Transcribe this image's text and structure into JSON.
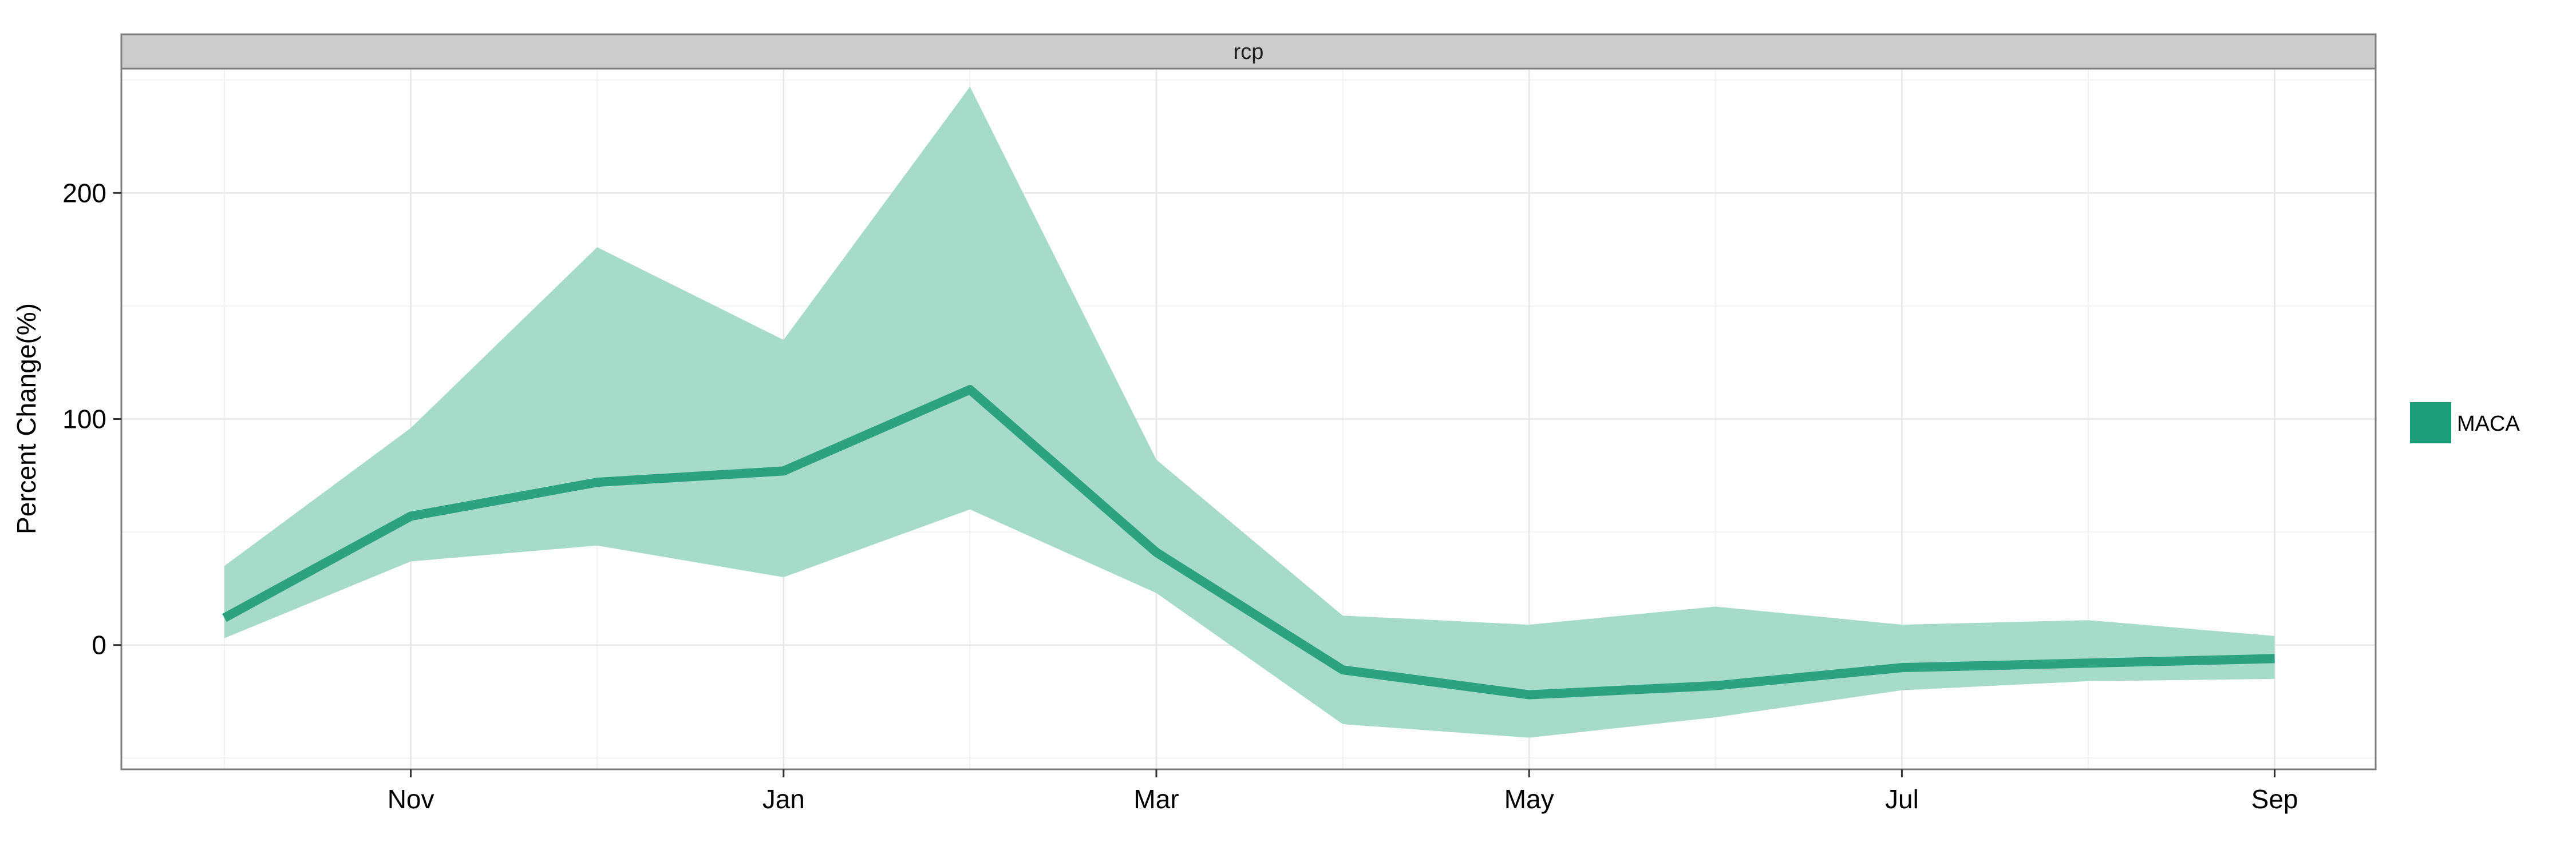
{
  "chart_data": {
    "type": "area",
    "facet_label": "rcp",
    "title": "",
    "xlabel": "",
    "ylabel": "Percent Change(%)",
    "x": [
      "Oct",
      "Nov",
      "Dec",
      "Jan",
      "Feb",
      "Mar",
      "Apr",
      "May",
      "Jun",
      "Jul",
      "Aug",
      "Sep"
    ],
    "x_tick_labels": [
      "Nov",
      "Jan",
      "Mar",
      "May",
      "Jul",
      "Sep"
    ],
    "y_ticks": [
      0,
      100,
      200
    ],
    "ylim": [
      -55,
      255
    ],
    "grid": true,
    "legend_position": "right",
    "series": [
      {
        "name": "MACA",
        "color": "#1b9e77",
        "median": [
          12,
          57,
          72,
          77,
          113,
          41,
          -11,
          -22,
          -18,
          -10,
          -8,
          -6
        ],
        "lower": [
          3,
          37,
          44,
          30,
          60,
          23,
          -35,
          -41,
          -32,
          -20,
          -16,
          -15
        ],
        "upper": [
          35,
          96,
          176,
          135,
          247,
          82,
          13,
          9,
          17,
          9,
          11,
          4
        ]
      }
    ],
    "ribbon_color": "#a6dbca",
    "line_color": "#2ca37e"
  }
}
